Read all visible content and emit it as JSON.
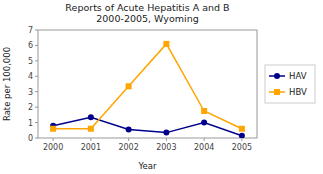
{
  "chart_data": {
    "type": "line",
    "title": "Reports of Acute Hepatitis A and B\n2000-2005, Wyoming",
    "x_label": "Year",
    "y_label": "Rate per 100,000",
    "x": [
      2000,
      2001,
      2002,
      2003,
      2004,
      2005
    ],
    "series": [
      {
        "name": "HAV",
        "color": "#00008B",
        "marker": "circle",
        "values": [
          0.8,
          1.35,
          0.55,
          0.35,
          1.0,
          0.15
        ]
      },
      {
        "name": "HBV",
        "color": "#FFA500",
        "marker": "square",
        "values": [
          0.6,
          0.6,
          3.35,
          6.1,
          1.75,
          0.6
        ]
      }
    ],
    "xlim": [
      1999.6,
      2005.4
    ],
    "xticks": [
      2000,
      2001,
      2002,
      2003,
      2004,
      2005
    ],
    "ylim": [
      0,
      7
    ],
    "yticks": [
      0,
      1,
      2,
      3,
      4,
      5,
      6,
      7
    ],
    "grid": false,
    "legend": "right"
  }
}
